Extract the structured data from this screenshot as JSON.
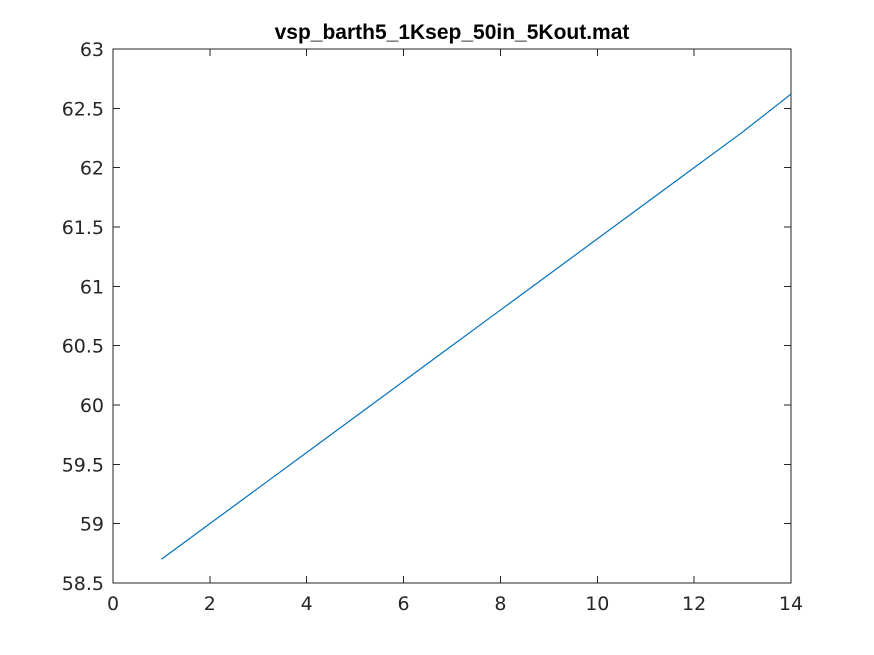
{
  "window": {
    "width": 874,
    "height": 655
  },
  "chart_data": {
    "type": "line",
    "title": "vsp_barth5_1Ksep_50in_5Kout.mat",
    "xlabel": "",
    "ylabel": "",
    "xlim": [
      0,
      14
    ],
    "ylim": [
      58.5,
      63
    ],
    "xticks": [
      0,
      2,
      4,
      6,
      8,
      10,
      12,
      14
    ],
    "yticks": [
      58.5,
      59,
      59.5,
      60,
      60.5,
      61,
      61.5,
      62,
      62.5,
      63
    ],
    "xtick_labels": [
      "0",
      "2",
      "4",
      "6",
      "8",
      "10",
      "12",
      "14"
    ],
    "ytick_labels": [
      "58.5",
      "59",
      "59.5",
      "60",
      "60.5",
      "61",
      "61.5",
      "62",
      "62.5",
      "63"
    ],
    "grid": false,
    "legend": "none",
    "series": [
      {
        "color": "#0072BD",
        "x": [
          1,
          2,
          3,
          4,
          5,
          6,
          7,
          8,
          9,
          10,
          11,
          12,
          13,
          14
        ],
        "y": [
          58.7,
          59.0,
          59.3,
          59.6,
          59.9,
          60.2,
          60.5,
          60.8,
          61.1,
          61.4,
          61.7,
          62.0,
          62.3,
          62.62
        ]
      }
    ]
  }
}
